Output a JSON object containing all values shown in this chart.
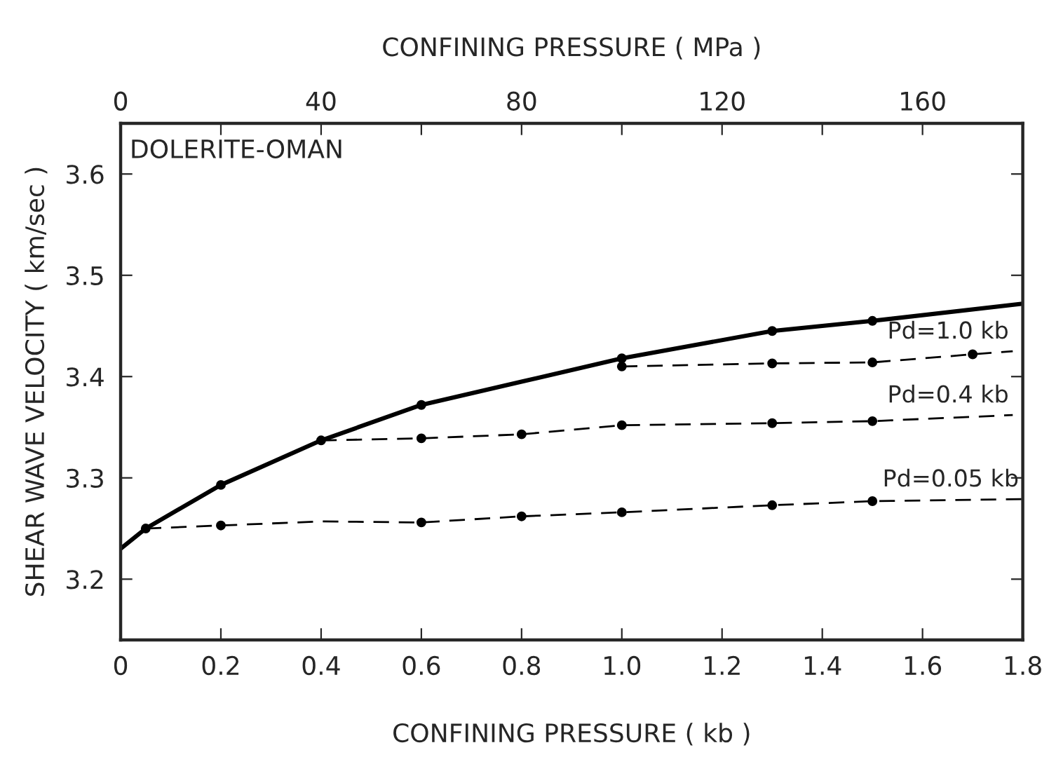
{
  "chart_data": {
    "type": "line",
    "xlabel": "CONFINING PRESSURE ( kb )",
    "x2label": "CONFINING PRESSURE ( MPa )",
    "ylabel": "SHEAR WAVE VELOCITY ( km/sec )",
    "xlim": [
      0,
      1.8
    ],
    "xticks": [
      {
        "value": 0,
        "label": "0"
      },
      0.2,
      0.4,
      0.6,
      0.8,
      {
        "value": 1.0,
        "label": "1.0"
      },
      1.2,
      1.4,
      1.6,
      1.8
    ],
    "x2lim": [
      0,
      180
    ],
    "x2ticks": [
      0,
      {
        "value": 20,
        "label": null
      },
      40,
      {
        "value": 60,
        "label": null
      },
      80,
      {
        "value": 100,
        "label": null
      },
      120,
      {
        "value": 140,
        "label": null
      },
      160
    ],
    "ylim": [
      3.14,
      3.65
    ],
    "yticks": [
      3.2,
      3.3,
      3.4,
      3.5,
      3.6
    ],
    "grid": false,
    "marker": "none",
    "series": [
      {
        "line_style": "solid",
        "color": "#000000",
        "x": [
          0,
          0.05,
          0.2,
          0.4,
          0.6,
          0.8,
          1.0,
          1.3,
          1.5,
          1.8
        ],
        "values": [
          3.23,
          3.25,
          3.293,
          3.337,
          3.372,
          3.395,
          3.418,
          3.445,
          3.455,
          3.472
        ]
      },
      {
        "line_style": "dashed",
        "color": "#000000",
        "x": [
          0.05,
          0.2,
          0.4,
          0.6,
          0.8,
          1.0,
          1.3,
          1.5,
          1.8
        ],
        "values": [
          3.25,
          3.253,
          3.257,
          3.256,
          3.262,
          3.266,
          3.273,
          3.277,
          3.279
        ]
      },
      {
        "line_style": "dashed",
        "color": "#000000",
        "x": [
          0.4,
          0.6,
          0.8,
          1.0,
          1.3,
          1.5,
          1.78
        ],
        "values": [
          3.337,
          3.339,
          3.343,
          3.352,
          3.354,
          3.356,
          3.362
        ]
      },
      {
        "line_style": "dashed",
        "color": "#000000",
        "x": [
          1.0,
          1.3,
          1.5,
          1.7,
          1.78
        ],
        "values": [
          3.41,
          3.413,
          3.414,
          3.422,
          3.425
        ]
      },
      {
        "type": "scatter",
        "marker": "circle",
        "color": "#000000",
        "x": [
          0.05,
          0.2,
          0.4,
          0.6,
          1.0,
          1.3,
          1.5,
          0.2,
          0.6,
          0.8,
          1.0,
          1.3,
          1.5,
          0.6,
          0.8,
          1.0,
          1.3,
          1.5,
          1.0,
          1.3,
          1.5,
          1.7
        ],
        "values": [
          3.25,
          3.293,
          3.337,
          3.372,
          3.418,
          3.445,
          3.455,
          3.253,
          3.256,
          3.262,
          3.266,
          3.273,
          3.277,
          3.339,
          3.343,
          3.352,
          3.354,
          3.356,
          3.41,
          3.413,
          3.414,
          3.422
        ]
      }
    ],
    "annotations": [
      "DOLERITE-OMAN",
      "Pd=1.0 kb",
      "Pd=0.4 kb",
      "Pd=0.05 kb"
    ]
  }
}
